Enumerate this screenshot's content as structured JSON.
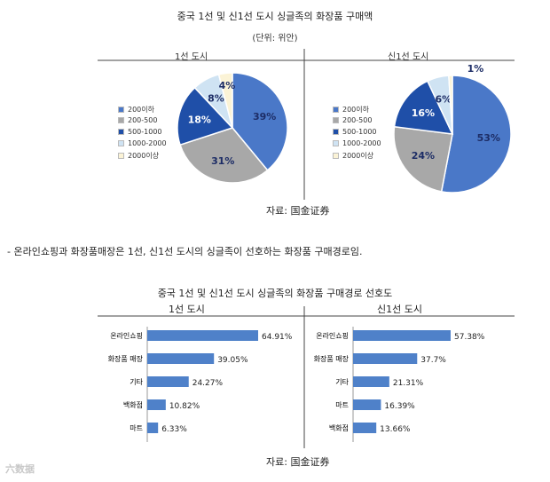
{
  "pie_section": {
    "title": "중국 1선 및 신1선 도시 싱글족의 화장품 구매액",
    "unit": "(단위: 위안)",
    "source": "자료: 国金证券"
  },
  "paragraph": "- 온라인쇼핑과 화장품매장은 1선, 신1선 도시의 싱글족이 선호하는 화장품 구매경로임.",
  "bar_section": {
    "title": "중국 1선 및 신1선 도시 싱글족의 화장품 구매경로 선호도",
    "source": "자료: 国金证券"
  },
  "watermark": "六数据",
  "colors": {
    "s1": "#4a78c8",
    "s2": "#a8a8a8",
    "s3": "#1f4fa8",
    "s4": "#cfe3f3",
    "s5": "#fbf3d6",
    "bar": "#4f81c9"
  },
  "chart_data": [
    {
      "type": "pie",
      "title": "1선 도시",
      "legend": [
        "200이하",
        "200-500",
        "500-1000",
        "1000-2000",
        "2000이상"
      ],
      "values": [
        39,
        31,
        18,
        8,
        4
      ],
      "labels": [
        "39%",
        "31%",
        "18%",
        "8%",
        "4%"
      ]
    },
    {
      "type": "pie",
      "title": "신1선 도시",
      "legend": [
        "200이하",
        "200-500",
        "500-1000",
        "1000-2000",
        "2000이상"
      ],
      "values": [
        53,
        24,
        16,
        6,
        1
      ],
      "labels": [
        "53%",
        "24%",
        "16%",
        "6%",
        "1%"
      ]
    },
    {
      "type": "bar",
      "title": "1선 도시",
      "categories": [
        "온라인쇼핑",
        "화장품 매장",
        "기타",
        "백화점",
        "마트"
      ],
      "values": [
        64.91,
        39.05,
        24.27,
        10.82,
        6.33
      ],
      "labels": [
        "64.91%",
        "39.05%",
        "24.27%",
        "10.82%",
        "6.33%"
      ]
    },
    {
      "type": "bar",
      "title": "신1선 도시",
      "categories": [
        "온라인쇼핑",
        "화장품 매장",
        "기타",
        "마트",
        "백화점"
      ],
      "values": [
        57.38,
        37.7,
        21.31,
        16.39,
        13.66
      ],
      "labels": [
        "57.38%",
        "37.7%",
        "21.31%",
        "16.39%",
        "13.66%"
      ]
    }
  ]
}
